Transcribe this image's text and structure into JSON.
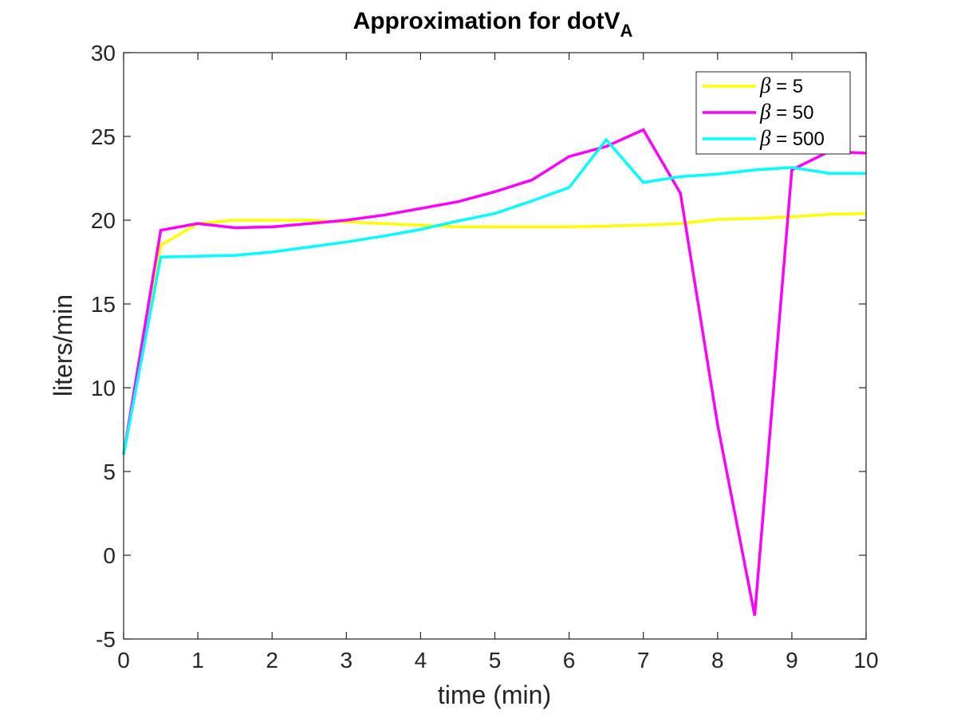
{
  "chart_data": {
    "type": "line",
    "title": "Approximation for dotV",
    "title_subscript": "A",
    "xlabel": "time (min)",
    "ylabel": "liters/min",
    "xlim": [
      0,
      10
    ],
    "ylim": [
      -5,
      30
    ],
    "xticks": [
      0,
      1,
      2,
      3,
      4,
      5,
      6,
      7,
      8,
      9,
      10
    ],
    "xtick_labels": [
      "0",
      "1",
      "2",
      "3",
      "4",
      "5",
      "6",
      "7",
      "8",
      "9",
      "10"
    ],
    "yticks": [
      -5,
      0,
      5,
      10,
      15,
      20,
      25,
      30
    ],
    "ytick_labels": [
      "-5",
      "0",
      "5",
      "10",
      "15",
      "20",
      "25",
      "30"
    ],
    "grid": false,
    "legend_position": "top-right",
    "x": [
      0,
      0.5,
      1,
      1.5,
      2,
      2.5,
      3,
      3.5,
      4,
      4.5,
      5,
      5.5,
      6,
      6.5,
      7,
      7.5,
      8,
      8.5,
      9,
      9.5,
      10
    ],
    "series": [
      {
        "name": "β = 5",
        "legend_symbol": "β",
        "legend_rest": " = 5",
        "color": "#ffff00",
        "values": [
          6.0,
          18.5,
          19.8,
          20.0,
          20.0,
          20.0,
          19.9,
          19.8,
          19.7,
          19.6,
          19.6,
          19.6,
          19.6,
          19.65,
          19.7,
          19.8,
          20.05,
          20.1,
          20.2,
          20.35,
          20.4
        ]
      },
      {
        "name": "β = 50",
        "legend_symbol": "β",
        "legend_rest": " = 50",
        "color": "#ff00ff",
        "values": [
          6.0,
          19.4,
          19.8,
          19.55,
          19.6,
          19.8,
          20.0,
          20.3,
          20.7,
          21.1,
          21.7,
          22.4,
          23.8,
          24.4,
          25.4,
          21.6,
          7.8,
          -3.6,
          23.0,
          24.1,
          24.0
        ]
      },
      {
        "name": "β = 500",
        "legend_symbol": "β",
        "legend_rest": " = 500",
        "color": "#00ffff",
        "values": [
          6.0,
          17.8,
          17.85,
          17.9,
          18.1,
          18.4,
          18.7,
          19.05,
          19.45,
          19.95,
          20.4,
          21.15,
          21.95,
          24.8,
          22.25,
          22.6,
          22.75,
          23.0,
          23.15,
          22.8,
          22.8
        ]
      }
    ]
  }
}
